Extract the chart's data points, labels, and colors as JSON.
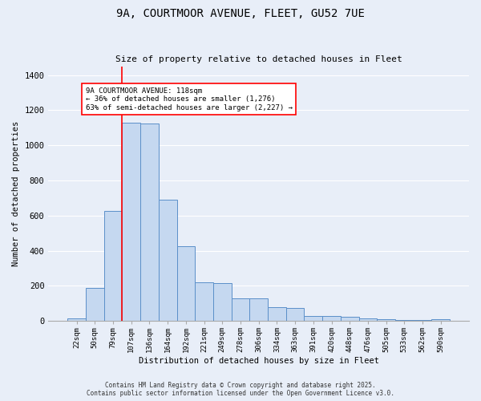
{
  "title_line1": "9A, COURTMOOR AVENUE, FLEET, GU52 7UE",
  "title_line2": "Size of property relative to detached houses in Fleet",
  "xlabel": "Distribution of detached houses by size in Fleet",
  "ylabel": "Number of detached properties",
  "bar_categories": [
    "22sqm",
    "50sqm",
    "79sqm",
    "107sqm",
    "136sqm",
    "164sqm",
    "192sqm",
    "221sqm",
    "249sqm",
    "278sqm",
    "306sqm",
    "334sqm",
    "363sqm",
    "391sqm",
    "420sqm",
    "448sqm",
    "476sqm",
    "505sqm",
    "533sqm",
    "562sqm",
    "590sqm"
  ],
  "bar_values": [
    15,
    190,
    625,
    1130,
    1125,
    690,
    425,
    220,
    215,
    130,
    130,
    80,
    75,
    30,
    28,
    22,
    15,
    10,
    5,
    5,
    10
  ],
  "bar_color": "#c5d8f0",
  "bar_edge_color": "#5b8fc9",
  "background_color": "#e8eef8",
  "grid_color": "#ffffff",
  "red_line_index": 3,
  "annotation_text": "9A COURTMOOR AVENUE: 118sqm\n← 36% of detached houses are smaller (1,276)\n63% of semi-detached houses are larger (2,227) →",
  "ylim": [
    0,
    1450
  ],
  "yticks": [
    0,
    200,
    400,
    600,
    800,
    1000,
    1200,
    1400
  ],
  "footer_line1": "Contains HM Land Registry data © Crown copyright and database right 2025.",
  "footer_line2": "Contains public sector information licensed under the Open Government Licence v3.0."
}
